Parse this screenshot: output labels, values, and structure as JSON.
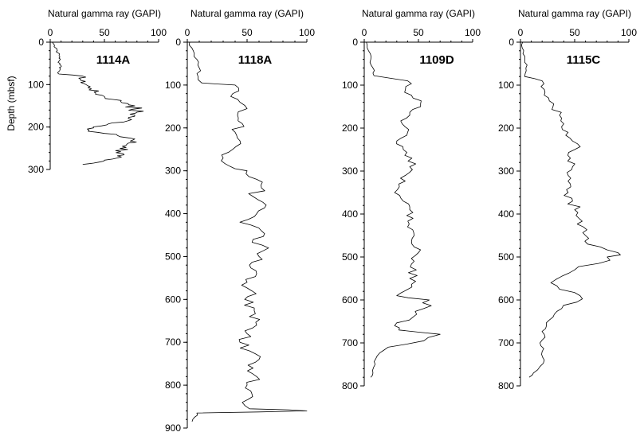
{
  "chart_data": [
    {
      "type": "line",
      "title": "",
      "xlabel": "Natural gamma ray (GAPI)",
      "ylabel": "Depth (mbsf)",
      "xlim": [
        0,
        100
      ],
      "ylim": [
        0,
        300
      ],
      "y_reversed": true,
      "x_ticks": [
        "0",
        "50",
        "100"
      ],
      "y_ticks": [
        "0",
        "100",
        "200",
        "300"
      ],
      "series": [
        {
          "name": "1114A",
          "points": [
            [
              2,
              0
            ],
            [
              4,
              8
            ],
            [
              6,
              15
            ],
            [
              7,
              25
            ],
            [
              9,
              35
            ],
            [
              8,
              45
            ],
            [
              10,
              55
            ],
            [
              9,
              65
            ],
            [
              8,
              75
            ],
            [
              30,
              80
            ],
            [
              28,
              90
            ],
            [
              33,
              100
            ],
            [
              38,
              110
            ],
            [
              42,
              120
            ],
            [
              50,
              128
            ],
            [
              58,
              135
            ],
            [
              65,
              140
            ],
            [
              72,
              145
            ],
            [
              78,
              150
            ],
            [
              76,
              158
            ],
            [
              80,
              165
            ],
            [
              78,
              172
            ],
            [
              72,
              180
            ],
            [
              68,
              188
            ],
            [
              52,
              195
            ],
            [
              40,
              202
            ],
            [
              35,
              210
            ],
            [
              62,
              220
            ],
            [
              78,
              228
            ],
            [
              72,
              238
            ],
            [
              70,
              248
            ],
            [
              65,
              258
            ],
            [
              62,
              268
            ],
            [
              50,
              278
            ],
            [
              40,
              285
            ],
            [
              30,
              288
            ]
          ]
        }
      ]
    },
    {
      "type": "line",
      "title": "",
      "xlabel": "Natural gamma ray (GAPI)",
      "ylabel": "",
      "xlim": [
        0,
        100
      ],
      "ylim": [
        0,
        900
      ],
      "y_reversed": true,
      "x_ticks": [
        "0",
        "50",
        "100"
      ],
      "y_ticks": [
        "0",
        "100",
        "200",
        "300",
        "400",
        "500",
        "600",
        "700",
        "800",
        "900"
      ],
      "series": [
        {
          "name": "1118A",
          "points": [
            [
              2,
              0
            ],
            [
              5,
              20
            ],
            [
              8,
              40
            ],
            [
              10,
              60
            ],
            [
              9,
              80
            ],
            [
              12,
              95
            ],
            [
              40,
              100
            ],
            [
              38,
              120
            ],
            [
              44,
              140
            ],
            [
              50,
              155
            ],
            [
              42,
              170
            ],
            [
              46,
              190
            ],
            [
              40,
              210
            ],
            [
              44,
              230
            ],
            [
              38,
              250
            ],
            [
              30,
              270
            ],
            [
              36,
              290
            ],
            [
              50,
              300
            ],
            [
              58,
              320
            ],
            [
              62,
              340
            ],
            [
              55,
              360
            ],
            [
              66,
              380
            ],
            [
              58,
              400
            ],
            [
              44,
              420
            ],
            [
              62,
              440
            ],
            [
              55,
              460
            ],
            [
              68,
              480
            ],
            [
              60,
              500
            ],
            [
              52,
              520
            ],
            [
              58,
              540
            ],
            [
              50,
              560
            ],
            [
              54,
              580
            ],
            [
              48,
              600
            ],
            [
              56,
              620
            ],
            [
              52,
              640
            ],
            [
              58,
              660
            ],
            [
              50,
              680
            ],
            [
              44,
              700
            ],
            [
              52,
              720
            ],
            [
              60,
              740
            ],
            [
              55,
              760
            ],
            [
              58,
              780
            ],
            [
              50,
              800
            ],
            [
              54,
              820
            ],
            [
              46,
              840
            ],
            [
              52,
              855
            ],
            [
              100,
              860
            ],
            [
              8,
              865
            ],
            [
              6,
              875
            ],
            [
              4,
              885
            ]
          ]
        }
      ]
    },
    {
      "type": "line",
      "title": "",
      "xlabel": "Natural gamma ray (GAPI)",
      "ylabel": "",
      "xlim": [
        0,
        100
      ],
      "ylim": [
        0,
        800
      ],
      "y_reversed": true,
      "x_ticks": [
        "0",
        "50",
        "100"
      ],
      "y_ticks": [
        "0",
        "100",
        "200",
        "300",
        "400",
        "500",
        "600",
        "700",
        "800"
      ],
      "series": [
        {
          "name": "1109D",
          "points": [
            [
              2,
              0
            ],
            [
              4,
              20
            ],
            [
              6,
              40
            ],
            [
              8,
              60
            ],
            [
              9,
              78
            ],
            [
              40,
              90
            ],
            [
              38,
              110
            ],
            [
              45,
              130
            ],
            [
              52,
              150
            ],
            [
              42,
              170
            ],
            [
              35,
              190
            ],
            [
              40,
              210
            ],
            [
              30,
              230
            ],
            [
              36,
              250
            ],
            [
              44,
              270
            ],
            [
              42,
              290
            ],
            [
              38,
              310
            ],
            [
              32,
              330
            ],
            [
              28,
              350
            ],
            [
              36,
              370
            ],
            [
              42,
              390
            ],
            [
              45,
              410
            ],
            [
              40,
              430
            ],
            [
              46,
              450
            ],
            [
              44,
              470
            ],
            [
              50,
              490
            ],
            [
              46,
              510
            ],
            [
              48,
              530
            ],
            [
              42,
              550
            ],
            [
              44,
              570
            ],
            [
              30,
              590
            ],
            [
              60,
              600
            ],
            [
              55,
              620
            ],
            [
              45,
              640
            ],
            [
              28,
              660
            ],
            [
              32,
              670
            ],
            [
              70,
              680
            ],
            [
              55,
              695
            ],
            [
              22,
              710
            ],
            [
              12,
              730
            ],
            [
              10,
              750
            ],
            [
              8,
              770
            ],
            [
              6,
              780
            ]
          ]
        }
      ]
    },
    {
      "type": "line",
      "title": "",
      "xlabel": "Natural gamma ray (GAPI)",
      "ylabel": "",
      "xlim": [
        0,
        100
      ],
      "ylim": [
        0,
        800
      ],
      "y_reversed": true,
      "x_ticks": [
        "0",
        "50",
        "100"
      ],
      "y_ticks": [
        "0",
        "100",
        "200",
        "300",
        "400",
        "500",
        "600",
        "700",
        "800"
      ],
      "series": [
        {
          "name": "1115C",
          "points": [
            [
              2,
              0
            ],
            [
              3,
              20
            ],
            [
              4,
              40
            ],
            [
              5,
              60
            ],
            [
              4,
              80
            ],
            [
              20,
              90
            ],
            [
              22,
              110
            ],
            [
              26,
              130
            ],
            [
              30,
              150
            ],
            [
              36,
              170
            ],
            [
              40,
              190
            ],
            [
              44,
              210
            ],
            [
              48,
              230
            ],
            [
              50,
              250
            ],
            [
              46,
              270
            ],
            [
              48,
              290
            ],
            [
              44,
              310
            ],
            [
              46,
              330
            ],
            [
              44,
              350
            ],
            [
              48,
              370
            ],
            [
              50,
              390
            ],
            [
              54,
              410
            ],
            [
              58,
              430
            ],
            [
              60,
              450
            ],
            [
              62,
              470
            ],
            [
              90,
              490
            ],
            [
              80,
              500
            ],
            [
              72,
              515
            ],
            [
              50,
              530
            ],
            [
              38,
              545
            ],
            [
              28,
              560
            ],
            [
              36,
              575
            ],
            [
              55,
              590
            ],
            [
              52,
              605
            ],
            [
              38,
              620
            ],
            [
              30,
              640
            ],
            [
              24,
              660
            ],
            [
              22,
              680
            ],
            [
              18,
              700
            ],
            [
              20,
              720
            ],
            [
              22,
              740
            ],
            [
              18,
              755
            ],
            [
              12,
              770
            ],
            [
              8,
              780
            ]
          ]
        }
      ]
    }
  ]
}
